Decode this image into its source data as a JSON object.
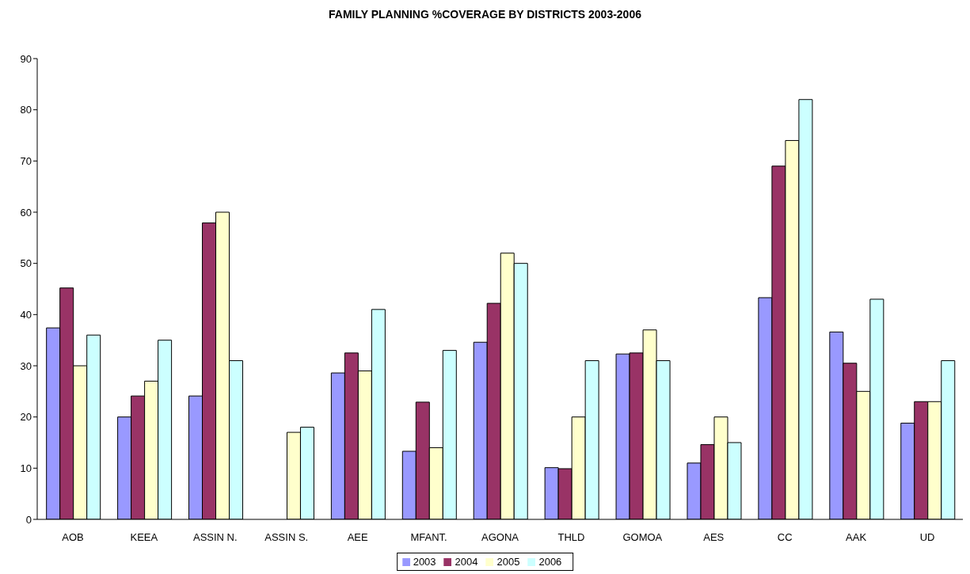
{
  "chart_data": {
    "type": "bar",
    "title": "FAMILY PLANNING %COVERAGE BY DISTRICTS 2003-2006",
    "categories": [
      "AOB",
      "KEEA",
      "ASSIN N.",
      "ASSIN S.",
      "AEE",
      "MFANT.",
      "AGONA",
      "THLD",
      "GOMOA",
      "AES",
      "CC",
      "AAK",
      "UD"
    ],
    "series": [
      {
        "name": "2003",
        "color": "#9999ff",
        "values": [
          37.4,
          20,
          24.1,
          null,
          28.6,
          13.3,
          34.6,
          10.1,
          32.3,
          11,
          43.3,
          36.6,
          18.8
        ]
      },
      {
        "name": "2004",
        "color": "#993366",
        "values": [
          45.2,
          24.1,
          57.9,
          null,
          32.5,
          22.9,
          42.2,
          9.9,
          32.5,
          14.6,
          69,
          30.5,
          23
        ]
      },
      {
        "name": "2005",
        "color": "#ffffcc",
        "values": [
          30,
          27,
          60,
          17,
          29,
          14,
          52,
          20,
          37,
          20,
          74,
          25,
          23
        ]
      },
      {
        "name": "2006",
        "color": "#ccffff",
        "values": [
          36,
          35,
          31,
          18,
          41,
          33,
          50,
          31,
          31,
          15,
          82,
          43,
          31
        ]
      }
    ],
    "ylim": [
      0,
      90
    ],
    "yticks": [
      0,
      10,
      20,
      30,
      40,
      50,
      60,
      70,
      80,
      90
    ],
    "legend": "bottom"
  }
}
